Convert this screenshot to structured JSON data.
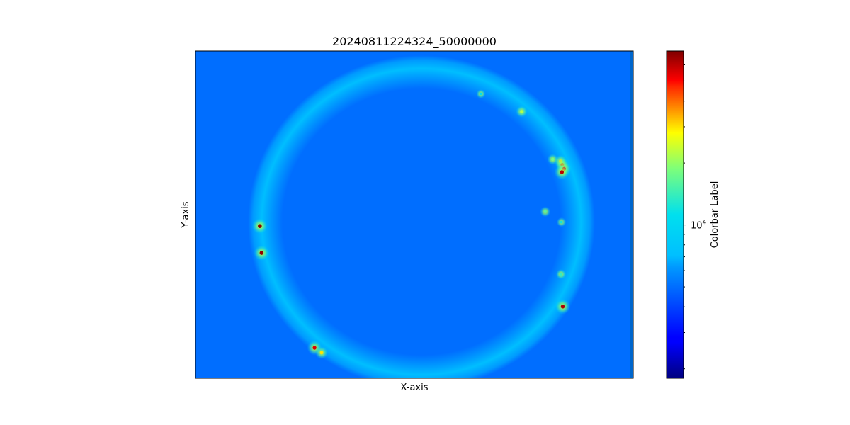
{
  "chart_data": {
    "type": "heatmap",
    "title": "20240811224324_50000000",
    "xlabel": "X-axis",
    "ylabel": "Y-axis",
    "x_ticks_visible": false,
    "y_ticks_visible": false,
    "colormap": "jet",
    "colorbar": {
      "label": "Colorbar Label",
      "scale": "log",
      "range": [
        1800,
        70000
      ],
      "major_tick_value": 10000,
      "major_tick_label_base": "10",
      "major_tick_label_exp": "4",
      "minor_tick_values": [
        2000,
        3000,
        4000,
        5000,
        6000,
        7000,
        8000,
        9000,
        20000,
        30000,
        40000,
        50000,
        60000
      ]
    },
    "background_value": 5000,
    "ring_value": 5600,
    "bright_sources": [
      {
        "x": 0.147,
        "y": 0.535,
        "value": 68000
      },
      {
        "x": 0.151,
        "y": 0.617,
        "value": 66000
      },
      {
        "x": 0.272,
        "y": 0.907,
        "value": 55000
      },
      {
        "x": 0.288,
        "y": 0.922,
        "value": 30000
      },
      {
        "x": 0.745,
        "y": 0.185,
        "value": 22000
      },
      {
        "x": 0.652,
        "y": 0.131,
        "value": 11000
      },
      {
        "x": 0.816,
        "y": 0.331,
        "value": 18000
      },
      {
        "x": 0.834,
        "y": 0.337,
        "value": 30000
      },
      {
        "x": 0.838,
        "y": 0.348,
        "value": 40000
      },
      {
        "x": 0.842,
        "y": 0.36,
        "value": 50000
      },
      {
        "x": 0.837,
        "y": 0.37,
        "value": 60000
      },
      {
        "x": 0.799,
        "y": 0.491,
        "value": 16000
      },
      {
        "x": 0.836,
        "y": 0.523,
        "value": 12000
      },
      {
        "x": 0.835,
        "y": 0.682,
        "value": 14000
      },
      {
        "x": 0.839,
        "y": 0.781,
        "value": 62000
      }
    ]
  }
}
